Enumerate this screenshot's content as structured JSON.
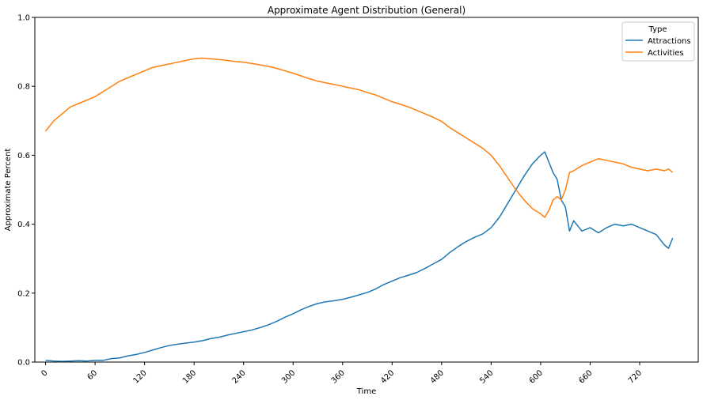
{
  "chart_data": {
    "type": "line",
    "title": "Approximate Agent Distribution (General)",
    "xlabel": "Time",
    "ylabel": "Approximate Percent",
    "xlim": [
      -13,
      791
    ],
    "ylim": [
      0,
      1.0
    ],
    "x_ticks": [
      0,
      60,
      120,
      180,
      240,
      300,
      360,
      420,
      480,
      540,
      600,
      660,
      720
    ],
    "x_tick_labels": [
      "0",
      "60",
      "120",
      "180",
      "240",
      "300",
      "360",
      "420",
      "480",
      "540",
      "600",
      "660",
      "720"
    ],
    "y_ticks": [
      0.0,
      0.2,
      0.4,
      0.6,
      0.8,
      1.0
    ],
    "y_tick_labels": [
      "0.0",
      "0.2",
      "0.4",
      "0.6",
      "0.8",
      "1.0"
    ],
    "grid": false,
    "legend": {
      "title": "Type",
      "position": "top-right"
    },
    "series": [
      {
        "name": "Attractions",
        "color": "#1f77b4",
        "x": [
          0,
          10,
          20,
          30,
          40,
          50,
          60,
          70,
          80,
          90,
          100,
          110,
          120,
          130,
          140,
          150,
          160,
          170,
          180,
          190,
          200,
          210,
          220,
          230,
          240,
          250,
          260,
          270,
          280,
          290,
          300,
          310,
          320,
          330,
          340,
          350,
          360,
          370,
          380,
          390,
          400,
          410,
          420,
          430,
          440,
          450,
          460,
          470,
          480,
          490,
          500,
          510,
          520,
          530,
          540,
          550,
          560,
          570,
          580,
          590,
          600,
          605,
          610,
          615,
          620,
          625,
          630,
          635,
          640,
          650,
          660,
          670,
          680,
          690,
          700,
          710,
          720,
          730,
          740,
          750,
          755,
          760
        ],
        "y": [
          0.005,
          0.003,
          0.002,
          0.003,
          0.004,
          0.003,
          0.005,
          0.005,
          0.01,
          0.012,
          0.018,
          0.022,
          0.028,
          0.035,
          0.042,
          0.048,
          0.052,
          0.055,
          0.058,
          0.062,
          0.068,
          0.072,
          0.078,
          0.083,
          0.088,
          0.093,
          0.1,
          0.108,
          0.118,
          0.13,
          0.14,
          0.152,
          0.162,
          0.17,
          0.175,
          0.178,
          0.182,
          0.188,
          0.195,
          0.202,
          0.212,
          0.225,
          0.235,
          0.245,
          0.252,
          0.26,
          0.272,
          0.285,
          0.298,
          0.318,
          0.335,
          0.35,
          0.362,
          0.372,
          0.39,
          0.42,
          0.46,
          0.5,
          0.54,
          0.575,
          0.6,
          0.61,
          0.58,
          0.55,
          0.53,
          0.47,
          0.45,
          0.38,
          0.41,
          0.38,
          0.39,
          0.375,
          0.39,
          0.4,
          0.395,
          0.4,
          0.39,
          0.38,
          0.37,
          0.34,
          0.33,
          0.36
        ]
      },
      {
        "name": "Activities",
        "color": "#ff7f0e",
        "x": [
          0,
          10,
          20,
          30,
          40,
          50,
          60,
          70,
          80,
          90,
          100,
          110,
          120,
          130,
          140,
          150,
          160,
          170,
          180,
          190,
          200,
          210,
          220,
          230,
          240,
          250,
          260,
          270,
          280,
          290,
          300,
          310,
          320,
          330,
          340,
          350,
          360,
          370,
          380,
          390,
          400,
          410,
          420,
          430,
          440,
          450,
          460,
          470,
          480,
          490,
          500,
          510,
          520,
          530,
          540,
          550,
          560,
          570,
          580,
          590,
          600,
          605,
          610,
          615,
          620,
          625,
          630,
          635,
          640,
          650,
          660,
          670,
          680,
          690,
          700,
          710,
          720,
          730,
          740,
          750,
          755,
          760
        ],
        "y": [
          0.67,
          0.7,
          0.72,
          0.74,
          0.75,
          0.76,
          0.77,
          0.785,
          0.8,
          0.815,
          0.825,
          0.835,
          0.845,
          0.855,
          0.86,
          0.865,
          0.87,
          0.875,
          0.88,
          0.882,
          0.88,
          0.878,
          0.875,
          0.872,
          0.87,
          0.866,
          0.862,
          0.858,
          0.852,
          0.845,
          0.838,
          0.83,
          0.822,
          0.815,
          0.81,
          0.805,
          0.8,
          0.795,
          0.79,
          0.782,
          0.775,
          0.765,
          0.755,
          0.748,
          0.74,
          0.73,
          0.72,
          0.71,
          0.698,
          0.68,
          0.665,
          0.65,
          0.635,
          0.62,
          0.6,
          0.57,
          0.535,
          0.5,
          0.47,
          0.445,
          0.43,
          0.42,
          0.44,
          0.47,
          0.48,
          0.47,
          0.5,
          0.55,
          0.555,
          0.57,
          0.58,
          0.59,
          0.585,
          0.58,
          0.575,
          0.565,
          0.56,
          0.555,
          0.56,
          0.555,
          0.56,
          0.55
        ]
      }
    ]
  }
}
